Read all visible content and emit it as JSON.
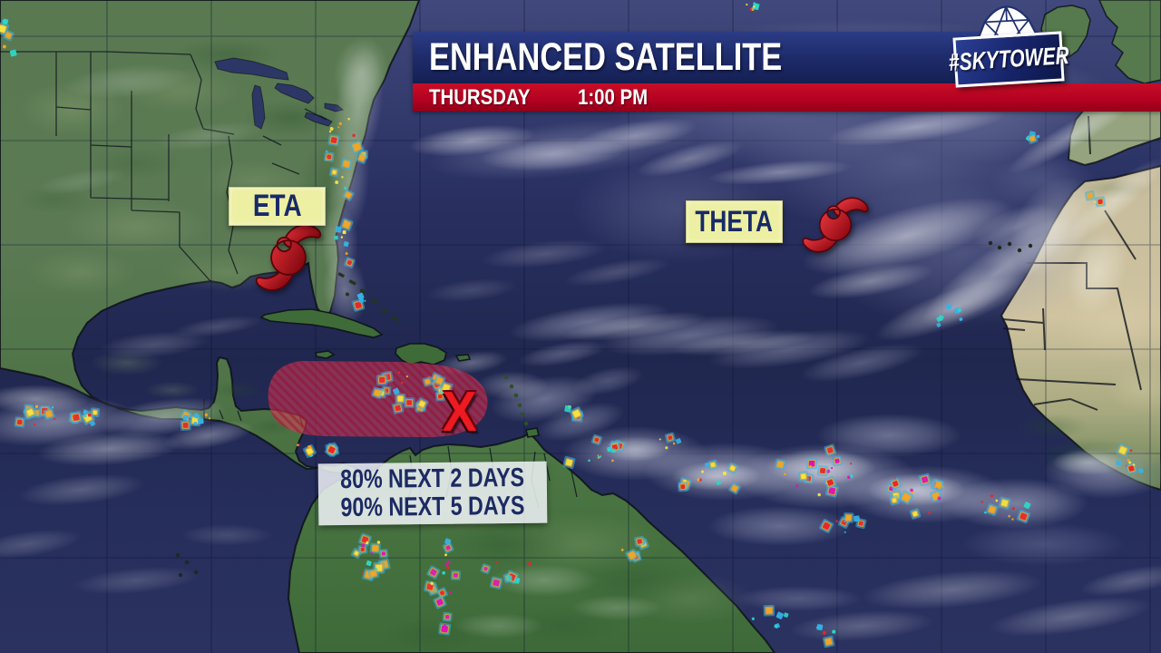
{
  "header": {
    "title": "ENHANCED SATELLITE",
    "brand": "#SKYTOWER",
    "brand_icon": "radar-dome-icon",
    "day": "THURSDAY",
    "time": "1:00 PM"
  },
  "map": {
    "type": "enhanced-satellite",
    "region": "Atlantic hurricane basin",
    "storms": [
      {
        "name": "ETA",
        "symbol": "tropical-storm-icon"
      },
      {
        "name": "THETA",
        "symbol": "tropical-storm-icon"
      }
    ],
    "disturbance": {
      "marker": "X",
      "outlook_line1": "80% NEXT 2 DAYS",
      "outlook_line2": "90% NEXT 5 DAYS"
    }
  },
  "colors": {
    "bar_navy": "#1f2d6d",
    "bar_red": "#b30120",
    "label_yellow": "#edefa3",
    "label_navy": "#182a68",
    "storm_red": "#c2111c",
    "hatch_red": "#e23b5b",
    "hatch_line": "#9c1030",
    "x_red": "#ed1a22",
    "ocean_deep": "#222a56",
    "land_green": "#5b7a54",
    "sahara_tan": "#cfc3a0"
  }
}
